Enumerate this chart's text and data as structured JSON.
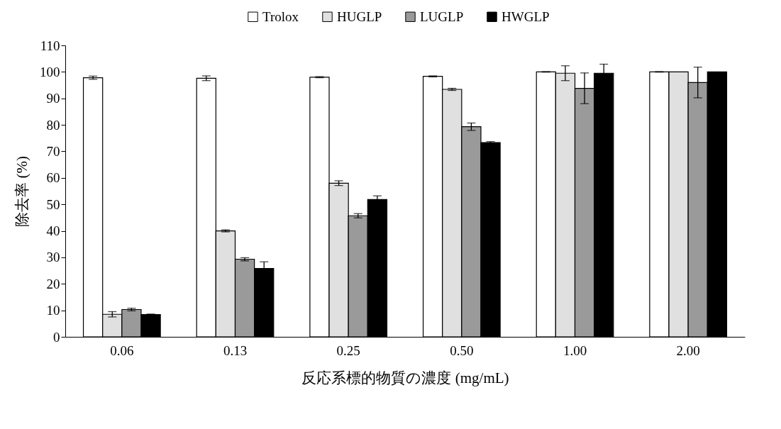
{
  "chart_data": {
    "type": "bar",
    "xlabel": "反応系標的物質の濃度 (mg/mL)",
    "ylabel": "除去率 (%)",
    "categories": [
      "0.06",
      "0.13",
      "0.25",
      "0.50",
      "1.00",
      "2.00"
    ],
    "series": [
      {
        "name": "Trolox",
        "color": "#ffffff",
        "values": [
          97.8,
          97.6,
          98.0,
          98.3,
          100,
          100
        ],
        "errors": [
          0.6,
          0.9,
          0.2,
          0.2,
          0.1,
          0.1
        ]
      },
      {
        "name": "HUGLP",
        "color": "#e0e0e0",
        "values": [
          8.5,
          40.0,
          58.0,
          93.4,
          99.5,
          100
        ],
        "errors": [
          1.0,
          0.4,
          0.9,
          0.4,
          2.8,
          null
        ]
      },
      {
        "name": "LUGLP",
        "color": "#9a9a9a",
        "values": [
          10.3,
          29.3,
          45.7,
          79.3,
          93.8,
          96.0
        ],
        "errors": [
          0.5,
          0.6,
          0.8,
          1.4,
          5.8,
          5.8
        ]
      },
      {
        "name": "HWGLP",
        "color": "#000000",
        "values": [
          8.4,
          25.8,
          51.8,
          73.3,
          99.5,
          100
        ],
        "errors": [
          0.2,
          2.5,
          1.4,
          0.4,
          3.4,
          null
        ]
      }
    ],
    "ylim": [
      0,
      110
    ],
    "yticks": [
      0,
      10,
      20,
      30,
      40,
      50,
      60,
      70,
      80,
      90,
      100,
      110
    ],
    "grid": false,
    "legend": "top"
  }
}
